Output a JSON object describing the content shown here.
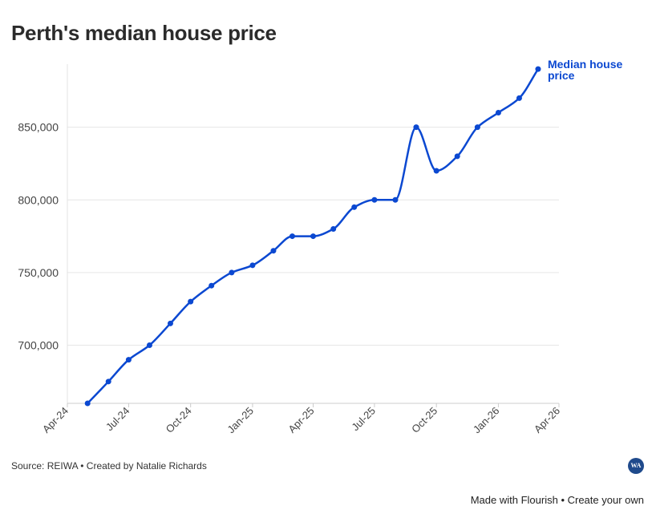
{
  "title": "Perth's median house price",
  "source_text": "Source: REIWA • Created by Natalie Richards",
  "badge_icon": "wa-logo-icon",
  "badge_text": "WA",
  "footer": {
    "made_with": "Made with Flourish",
    "separator": " • ",
    "create": "Create your own"
  },
  "colors": {
    "line": "#0b48d1",
    "grid": "#e6e6e6",
    "axis": "#cccccc"
  },
  "chart_data": {
    "type": "line",
    "title": "Perth's median house price",
    "xlabel": "",
    "ylabel": "",
    "ylim": [
      660000,
      900000
    ],
    "yticks": [
      700000,
      750000,
      800000,
      850000
    ],
    "ytick_labels": [
      "700,000",
      "750,000",
      "800,000",
      "850,000"
    ],
    "xlim": [
      "2024-04-01",
      "2026-04-01"
    ],
    "xticks": [
      "2024-04-01",
      "2024-07-01",
      "2024-10-01",
      "2025-01-01",
      "2025-04-01",
      "2025-07-01",
      "2025-10-01",
      "2026-01-01",
      "2026-04-01"
    ],
    "xtick_labels": [
      "Apr-24",
      "Jul-24",
      "Oct-24",
      "Jan-25",
      "Apr-25",
      "Jul-25",
      "Oct-25",
      "Jan-26",
      "Apr-26"
    ],
    "grid": true,
    "series": [
      {
        "name": "Median house price",
        "x": [
          "2024-05-01",
          "2024-06-01",
          "2024-07-01",
          "2024-08-01",
          "2024-09-01",
          "2024-10-01",
          "2024-11-01",
          "2024-12-01",
          "2025-01-01",
          "2025-02-01",
          "2025-03-01",
          "2025-04-01",
          "2025-05-01",
          "2025-06-01",
          "2025-07-01",
          "2025-08-01",
          "2025-09-01",
          "2025-10-01",
          "2025-11-01",
          "2025-12-01",
          "2026-01-01",
          "2026-02-01",
          "2026-03-01"
        ],
        "y": [
          660000,
          675000,
          690000,
          700000,
          715000,
          730000,
          741000,
          750000,
          755000,
          765000,
          775000,
          775000,
          780000,
          795000,
          800000,
          800000,
          850000,
          820000,
          830000,
          850000,
          860000,
          870000,
          890000
        ]
      }
    ]
  }
}
